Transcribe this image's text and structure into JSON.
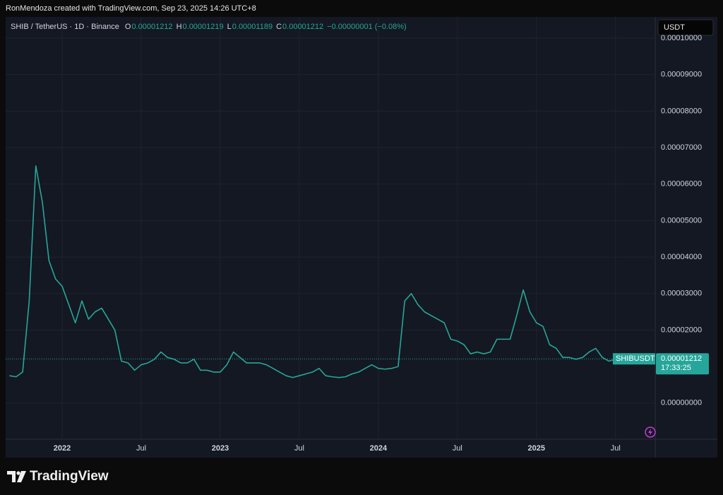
{
  "header": {
    "credit": "RonMendoza created with TradingView.com, Sep 23, 2025 14:26 UTC+8"
  },
  "chart_data": {
    "type": "line",
    "symbol": "SHIB / TetherUS · 1D · Binance",
    "ohlc": [
      {
        "key": "O",
        "value": "0.00001212"
      },
      {
        "key": "H",
        "value": "0.00001219"
      },
      {
        "key": "L",
        "value": "0.00001189"
      },
      {
        "key": "C",
        "value": "0.00001212"
      }
    ],
    "change": "−0.00000001 (−0.08%)",
    "currency": "USDT",
    "categories": [
      null,
      null,
      null,
      null,
      null,
      null,
      null,
      null,
      "2022",
      null,
      null,
      null,
      null,
      null,
      null,
      null,
      null,
      null,
      null,
      null,
      "Jul",
      null,
      null,
      null,
      null,
      null,
      null,
      null,
      null,
      null,
      null,
      null,
      "2023",
      null,
      null,
      null,
      null,
      null,
      null,
      null,
      null,
      null,
      null,
      null,
      "Jul",
      null,
      null,
      null,
      null,
      null,
      null,
      null,
      null,
      null,
      null,
      null,
      "2024",
      null,
      null,
      null,
      null,
      null,
      null,
      null,
      null,
      null,
      null,
      null,
      "Jul",
      null,
      null,
      null,
      null,
      null,
      null,
      null,
      null,
      null,
      null,
      null,
      "2025",
      null,
      null,
      null,
      null,
      null,
      null,
      null,
      null,
      null,
      null,
      null,
      "Jul",
      null,
      null,
      null,
      null
    ],
    "series": [
      {
        "name": "SHIBUSDT",
        "color": "#26a69a",
        "values": [
          7.5e-06,
          7.2e-06,
          8.5e-06,
          2.8e-05,
          6.5e-05,
          5.5e-05,
          3.9e-05,
          3.4e-05,
          3.2e-05,
          2.7e-05,
          2.2e-05,
          2.8e-05,
          2.3e-05,
          2.5e-05,
          2.6e-05,
          2.3e-05,
          2e-05,
          1.15e-05,
          1.1e-05,
          9e-06,
          1.05e-05,
          1.1e-05,
          1.2e-05,
          1.4e-05,
          1.25e-05,
          1.2e-05,
          1.1e-05,
          1.1e-05,
          1.2e-05,
          9e-06,
          9e-06,
          8.5e-06,
          8.5e-06,
          1.05e-05,
          1.4e-05,
          1.25e-05,
          1.1e-05,
          1.1e-05,
          1.1e-05,
          1.05e-05,
          9.5e-06,
          8.5e-06,
          7.5e-06,
          7e-06,
          7.5e-06,
          8e-06,
          8.5e-06,
          9.5e-06,
          7.5e-06,
          7.2e-06,
          7e-06,
          7.2e-06,
          8e-06,
          8.5e-06,
          9.5e-06,
          1.05e-05,
          9.5e-06,
          9.3e-06,
          9.5e-06,
          1e-05,
          2.8e-05,
          3e-05,
          2.7e-05,
          2.5e-05,
          2.4e-05,
          2.3e-05,
          2.2e-05,
          1.75e-05,
          1.7e-05,
          1.6e-05,
          1.35e-05,
          1.4e-05,
          1.35e-05,
          1.4e-05,
          1.75e-05,
          1.75e-05,
          1.75e-05,
          2.4e-05,
          3.1e-05,
          2.5e-05,
          2.2e-05,
          2.1e-05,
          1.6e-05,
          1.5e-05,
          1.25e-05,
          1.25e-05,
          1.2e-05,
          1.25e-05,
          1.4e-05,
          1.5e-05,
          1.25e-05,
          1.15e-05,
          1.2e-05,
          1.35e-05,
          1.3e-05,
          1.3e-05,
          1.212e-05
        ]
      }
    ],
    "last_price": {
      "value": 1.212e-05,
      "label": "0.00001212"
    },
    "countdown": "17:33:25",
    "ylim": [
      -9.9e-06,
      0.0001058
    ],
    "yticks": [
      {
        "value": 0,
        "label": "0.00000000"
      },
      {
        "value": 2e-05,
        "label": "0.00002000"
      },
      {
        "value": 3e-05,
        "label": "0.00003000"
      },
      {
        "value": 4e-05,
        "label": "0.00004000"
      },
      {
        "value": 5e-05,
        "label": "0.00005000"
      },
      {
        "value": 6e-05,
        "label": "0.00006000"
      },
      {
        "value": 7e-05,
        "label": "0.00007000"
      },
      {
        "value": 8e-05,
        "label": "0.00008000"
      },
      {
        "value": 9e-05,
        "label": "0.00009000"
      },
      {
        "value": 0.0001,
        "label": "0.00010000"
      }
    ],
    "grid": true
  },
  "footer": {
    "brand": "TradingView"
  }
}
